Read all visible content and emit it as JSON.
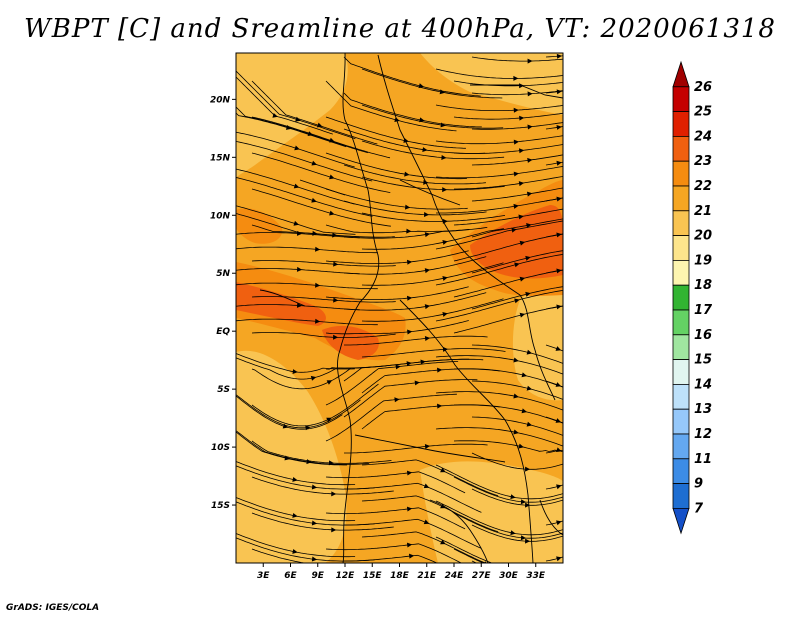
{
  "title": "WBPT [C] and Sreamline at 400hPa, VT: 2020061318",
  "footer": "GrADS: IGES/COLA",
  "map": {
    "variable": "Wet-bulb potential temperature",
    "units": "C",
    "level": "400hPa",
    "valid_time": "2020061318",
    "lon_range": [
      0,
      36
    ],
    "lat_range": [
      -20,
      24
    ],
    "lon_tick_labels": [
      "3E",
      "6E",
      "9E",
      "12E",
      "15E",
      "18E",
      "21E",
      "24E",
      "27E",
      "30E",
      "33E"
    ],
    "lon_tick_values": [
      3,
      6,
      9,
      12,
      15,
      18,
      21,
      24,
      27,
      30,
      33
    ],
    "lat_tick_labels": [
      "20N",
      "15N",
      "10N",
      "5N",
      "EQ",
      "5S",
      "10S",
      "15S"
    ],
    "lat_tick_values": [
      20,
      15,
      10,
      5,
      0,
      -5,
      -10,
      -15
    ]
  },
  "colorbar": {
    "labels": [
      "26",
      "25",
      "24",
      "23",
      "22",
      "21",
      "20",
      "19",
      "18",
      "17",
      "16",
      "15",
      "14",
      "13",
      "12",
      "11",
      "9",
      "7"
    ],
    "colors": [
      "#a00000",
      "#c40000",
      "#e02000",
      "#f06010",
      "#f58c10",
      "#f5a623",
      "#f9c452",
      "#fde58c",
      "#fdf5b0",
      "#32b432",
      "#64d264",
      "#a0e6a0",
      "#e1f5f0",
      "#bee1fa",
      "#96c8fa",
      "#64a8f0",
      "#3c8ce6",
      "#1e6ed2",
      "#1450c8"
    ]
  },
  "colors": {
    "background": "#ffffff",
    "frame": "#000000",
    "streamline": "#000000"
  }
}
